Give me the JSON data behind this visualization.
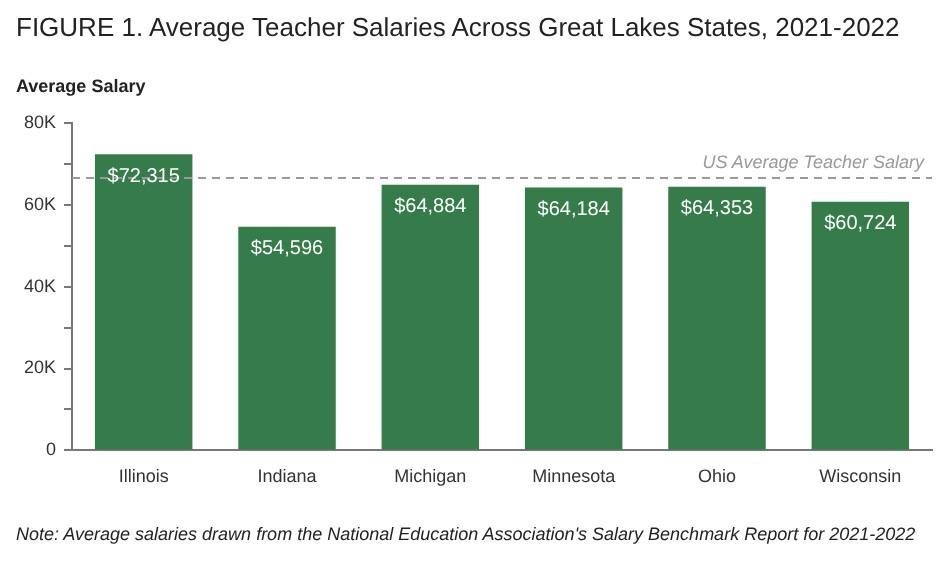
{
  "chart_data": {
    "type": "bar",
    "title": "FIGURE 1. Average Teacher Salaries Across Great Lakes States, 2021-2022",
    "ylabel": "Average Salary",
    "categories": [
      "Illinois",
      "Indiana",
      "Michigan",
      "Minnesota",
      "Ohio",
      "Wisconsin"
    ],
    "values": [
      72315,
      54596,
      64884,
      64184,
      64353,
      60724
    ],
    "value_labels": [
      "$72,315",
      "$54,596",
      "$64,884",
      "$64,184",
      "$64,353",
      "$60,724"
    ],
    "color": "#367b4a",
    "ylim": [
      0,
      80000
    ],
    "yticks": [
      0,
      {
        "value": 10000,
        "label": null
      },
      {
        "value": 20000,
        "label": "20K"
      },
      {
        "value": 30000,
        "label": null
      },
      {
        "value": 40000,
        "label": "40K"
      },
      {
        "value": 50000,
        "label": null
      },
      {
        "value": 60000,
        "label": "60K"
      },
      {
        "value": 70000,
        "label": null
      },
      {
        "value": 80000,
        "label": "80K"
      }
    ],
    "ref_lines": [
      {
        "axis": "y",
        "value": 66500,
        "label": "US Average Teacher Salary",
        "color": "#999999",
        "line_style": "dashed"
      }
    ],
    "grid": false,
    "legend": false,
    "annotations": [
      "Note: Average salaries drawn from the National Education Association's Salary Benchmark Report for 2021-2022"
    ]
  }
}
